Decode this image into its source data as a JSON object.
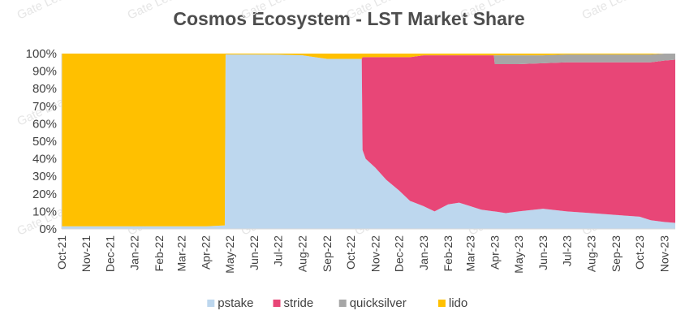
{
  "chart_data": {
    "type": "area",
    "stacked": true,
    "normalized": true,
    "title": "Cosmos Ecosystem - LST Market Share",
    "xlabel": "",
    "ylabel": "",
    "ylim": [
      0,
      100
    ],
    "y_ticks": [
      "0%",
      "10%",
      "20%",
      "30%",
      "40%",
      "50%",
      "60%",
      "70%",
      "80%",
      "90%",
      "100%"
    ],
    "x_ticks": [
      "Oct-21",
      "Nov-21",
      "Dec-21",
      "Jan-22",
      "Feb-22",
      "Mar-22",
      "Apr-22",
      "May-22",
      "Jun-22",
      "Jul-22",
      "Aug-22",
      "Sep-22",
      "Oct-22",
      "Nov-22",
      "Dec-22",
      "Jan-23",
      "Feb-23",
      "Mar-23",
      "Apr-23",
      "May-23",
      "Jun-23",
      "Jul-23",
      "Aug-23",
      "Sep-23",
      "Oct-23",
      "Nov-23"
    ],
    "x": [
      "2021-10-01",
      "2021-11-01",
      "2021-12-01",
      "2022-01-01",
      "2022-02-01",
      "2022-03-01",
      "2022-04-01",
      "2022-04-25",
      "2022-04-26",
      "2022-05-01",
      "2022-06-01",
      "2022-07-01",
      "2022-08-01",
      "2022-09-01",
      "2022-10-01",
      "2022-10-15",
      "2022-10-16",
      "2022-10-20",
      "2022-11-01",
      "2022-11-15",
      "2022-12-01",
      "2022-12-15",
      "2023-01-01",
      "2023-01-15",
      "2023-02-01",
      "2023-02-15",
      "2023-03-01",
      "2023-03-15",
      "2023-03-31",
      "2023-04-01",
      "2023-04-15",
      "2023-05-01",
      "2023-06-01",
      "2023-07-01",
      "2023-08-01",
      "2023-09-01",
      "2023-10-01",
      "2023-10-15",
      "2023-11-01",
      "2023-11-15"
    ],
    "series": [
      {
        "name": "pstake",
        "color": "#bdd7ee",
        "values": [
          1.5,
          1.5,
          1.5,
          1.5,
          1.5,
          1.5,
          1.5,
          2,
          99.5,
          99.5,
          99.5,
          99.4,
          99,
          97,
          97,
          97,
          45,
          40,
          35,
          28,
          22,
          16,
          13,
          10,
          14,
          15,
          13,
          11,
          10,
          10,
          9,
          10,
          11.5,
          10,
          9,
          8,
          7,
          5,
          4,
          3.5
        ]
      },
      {
        "name": "stride",
        "color": "#e84677",
        "values": [
          0,
          0,
          0,
          0,
          0,
          0,
          0,
          0,
          0,
          0,
          0,
          0,
          0,
          0,
          0,
          0,
          53,
          58,
          63,
          70,
          76,
          82,
          86,
          89,
          85,
          84,
          86,
          88,
          89,
          84,
          85,
          84,
          83,
          85,
          86,
          87,
          88,
          90,
          92,
          93
        ]
      },
      {
        "name": "quicksilver",
        "color": "#a6a6a6",
        "values": [
          0,
          0,
          0,
          0,
          0,
          0,
          0,
          0,
          0,
          0,
          0,
          0,
          0,
          0,
          0,
          0,
          0,
          0,
          0,
          0,
          0,
          0,
          0,
          0,
          0,
          0,
          0,
          0,
          0,
          5,
          5,
          5,
          4.5,
          4.5,
          4.5,
          4.5,
          4.5,
          4.5,
          4,
          3.5
        ]
      },
      {
        "name": "lido",
        "color": "#ffc000",
        "values": [
          98.5,
          98.5,
          98.5,
          98.5,
          98.5,
          98.5,
          98.5,
          98,
          0.5,
          0.5,
          0.5,
          0.6,
          1,
          3,
          3,
          3,
          2,
          2,
          2,
          2,
          2,
          2,
          1,
          1,
          1,
          1,
          1,
          1,
          1,
          1,
          1,
          1,
          1,
          0.5,
          0.5,
          0.5,
          0.5,
          0.5,
          0,
          0
        ]
      }
    ],
    "legend": {
      "position": "bottom",
      "entries": [
        "pstake",
        "stride",
        "quicksilver",
        "lido"
      ]
    },
    "grid": false,
    "watermark": "Gate Learn"
  }
}
